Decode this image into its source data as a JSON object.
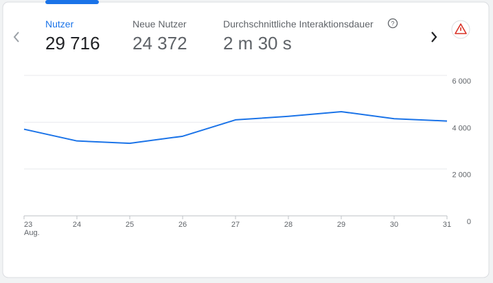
{
  "metrics": [
    {
      "label": "Nutzer",
      "value": "29 716",
      "selected": true
    },
    {
      "label": "Neue Nutzer",
      "value": "24 372",
      "selected": false
    },
    {
      "label": "Durchschnittliche Interaktionsdauer",
      "value": "2 m 30 s",
      "selected": false
    }
  ],
  "chart_data": {
    "type": "line",
    "categories": [
      "23",
      "24",
      "25",
      "26",
      "27",
      "28",
      "29",
      "30",
      "31"
    ],
    "month_label": "Aug.",
    "values": [
      3700,
      3200,
      3100,
      3400,
      4100,
      4250,
      4450,
      4150,
      4050
    ],
    "color": "#1a73e8",
    "ylim": [
      0,
      6000
    ],
    "yticks": [
      {
        "value": 0,
        "label": "0"
      },
      {
        "value": 2000,
        "label": "2 000"
      },
      {
        "value": 4000,
        "label": "4 000"
      },
      {
        "value": 6000,
        "label": "6 000"
      }
    ],
    "grid": true
  }
}
